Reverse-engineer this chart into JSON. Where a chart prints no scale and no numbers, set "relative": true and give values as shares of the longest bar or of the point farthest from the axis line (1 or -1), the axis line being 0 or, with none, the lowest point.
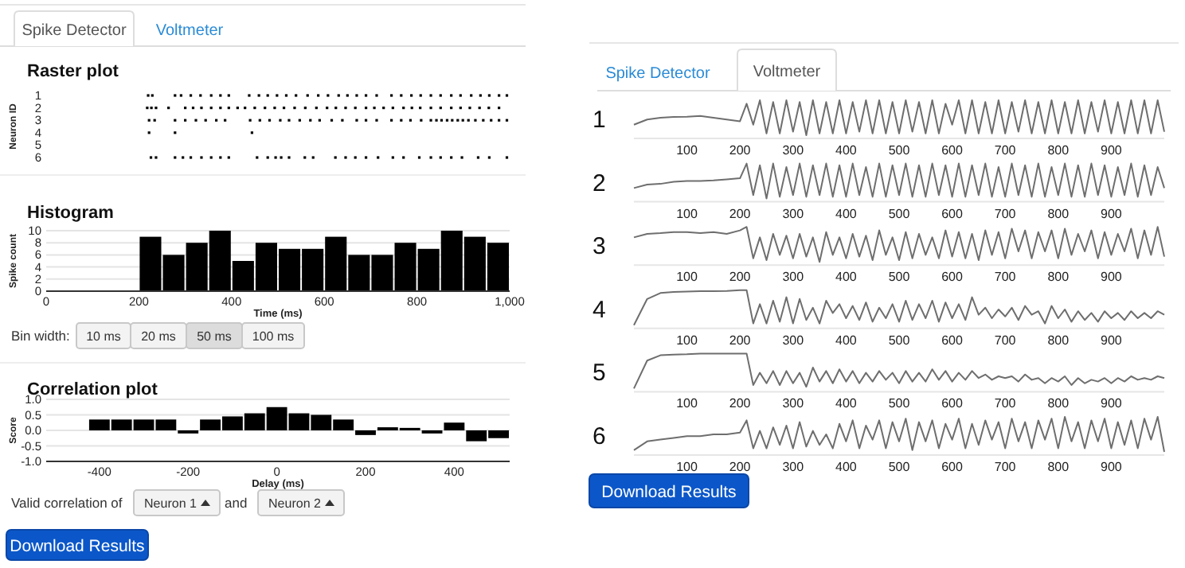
{
  "chart_data": [
    {
      "type": "scatter",
      "title": "Raster plot",
      "ylabel": "Neuron ID",
      "xlim": [
        0,
        1000
      ],
      "ylim": [
        6,
        1
      ],
      "yticks": [
        1,
        2,
        3,
        4,
        5,
        6
      ],
      "tick_labels": "y",
      "marker": "square",
      "annotations": [
        "Spike Detector",
        "Voltmeter"
      ],
      "series": [
        {
          "color": "#000000",
          "x": [
            220,
            229,
            278,
            291,
            312,
            333,
            356,
            376,
            394,
            438,
            459,
            478,
            498,
            518,
            539,
            564,
            587,
            608,
            631,
            650,
            670,
            690,
            713,
            745,
            766,
            788,
            808,
            830,
            851,
            874,
            894,
            917,
            937,
            956,
            977,
            994
          ],
          "values": [
            1,
            1,
            1,
            1,
            1,
            1,
            1,
            1,
            1,
            1,
            1,
            1,
            1,
            1,
            1,
            1,
            1,
            1,
            1,
            1,
            1,
            1,
            1,
            1,
            1,
            1,
            1,
            1,
            1,
            1,
            1,
            1,
            1,
            1,
            1,
            1
          ]
        },
        {
          "color": "#000000",
          "x": [
            218,
            227,
            237,
            264,
            300,
            317,
            335,
            356,
            376,
            394,
            413,
            429,
            450,
            472,
            493,
            513,
            536,
            559,
            583,
            606,
            625,
            646,
            667,
            690,
            708,
            728,
            748,
            771,
            789,
            807,
            830,
            851,
            874,
            894,
            914,
            935,
            955,
            977
          ],
          "values": [
            2,
            2,
            2,
            2,
            2,
            2,
            2,
            2,
            2,
            2,
            2,
            2,
            2,
            2,
            2,
            2,
            2,
            2,
            2,
            2,
            2,
            2,
            2,
            2,
            2,
            2,
            2,
            2,
            2,
            2,
            2,
            2,
            2,
            2,
            2,
            2,
            2,
            2
          ]
        },
        {
          "color": "#000000",
          "x": [
            222,
            234,
            278,
            300,
            323,
            344,
            367,
            386,
            440,
            461,
            482,
            505,
            524,
            547,
            570,
            590,
            616,
            639,
            670,
            690,
            713,
            745,
            766,
            786,
            809,
            830,
            842,
            853,
            865,
            876,
            888,
            899,
            911,
            926,
            943,
            960,
            977,
            994
          ],
          "values": [
            3,
            3,
            3,
            3,
            3,
            3,
            3,
            3,
            3,
            3,
            3,
            3,
            3,
            3,
            3,
            3,
            3,
            3,
            3,
            3,
            3,
            3,
            3,
            3,
            3,
            3,
            3,
            3,
            3,
            3,
            3,
            3,
            3,
            3,
            3,
            3,
            3,
            3
          ]
        },
        {
          "color": "#000000",
          "x": [
            222,
            278,
            444
          ],
          "values": [
            4,
            4,
            4
          ]
        },
        {
          "color": "#000000",
          "x": [
            226,
            237,
            278,
            295,
            312,
            335,
            356,
            376,
            394,
            455,
            478,
            495,
            507,
            524,
            558,
            576,
            624,
            646,
            667,
            690,
            716,
            748,
            771,
            805,
            830,
            851,
            874,
            897,
            932,
            956,
            994
          ],
          "values": [
            6,
            6,
            6,
            6,
            6,
            6,
            6,
            6,
            6,
            6,
            6,
            6,
            6,
            6,
            6,
            6,
            6,
            6,
            6,
            6,
            6,
            6,
            6,
            6,
            6,
            6,
            6,
            6,
            6,
            6,
            6
          ]
        }
      ]
    },
    {
      "type": "histogram",
      "title": "Histogram",
      "xlabel": "Time (ms)",
      "ylabel": "Spike count",
      "color": "#000000",
      "bins": [
        200,
        250,
        300,
        350,
        400,
        450,
        500,
        550,
        600,
        650,
        700,
        750,
        800,
        850,
        900,
        950,
        1000
      ],
      "values": [
        9,
        6,
        8,
        10,
        5,
        8,
        7,
        7,
        9,
        6,
        6,
        8,
        7,
        10,
        9,
        8
      ],
      "xlim": [
        0,
        1000
      ],
      "xticks": [
        0,
        200,
        400,
        600,
        800,
        {
          "value": 1000,
          "label": "1,000"
        }
      ],
      "ylim": [
        0,
        10
      ],
      "yticks": [
        0,
        2,
        4,
        6,
        8,
        10
      ],
      "grid": "y",
      "annotations": [
        "Bin width:",
        "10 ms",
        "20 ms",
        "50 ms",
        "100 ms"
      ]
    },
    {
      "type": "bar",
      "title": "Correlation plot",
      "xlabel": "Delay (ms)",
      "ylabel": "Score",
      "color": "#000000",
      "x": [
        -400,
        -350,
        -300,
        -250,
        -200,
        -150,
        -100,
        -50,
        0,
        50,
        100,
        150,
        200,
        250,
        300,
        350,
        400,
        450,
        500
      ],
      "values": [
        0.35,
        0.35,
        0.35,
        0.35,
        -0.1,
        0.35,
        0.45,
        0.55,
        0.75,
        0.55,
        0.5,
        0.35,
        -0.15,
        0.1,
        0.08,
        -0.1,
        0.25,
        -0.35,
        -0.25
      ],
      "xlim": [
        -520,
        525
      ],
      "xticks": [
        -400,
        -200,
        0,
        200,
        400
      ],
      "ylim": [
        -1,
        1
      ],
      "yticks": [
        {
          "value": -1,
          "label": "-1.0"
        },
        {
          "value": -0.5,
          "label": "-0.5"
        },
        {
          "value": 0,
          "label": "0.0"
        },
        {
          "value": 0.5,
          "label": "0.5"
        },
        {
          "value": 1,
          "label": "1.0"
        }
      ],
      "grid": "y",
      "annotations": [
        "Valid correlation of",
        "Neuron 1",
        "and",
        "Neuron 2",
        "Download Results"
      ]
    },
    {
      "type": "line",
      "title": "1",
      "relative": true,
      "color": "#6e6e6e",
      "xlim": [
        0,
        1000
      ],
      "xticks": [
        100,
        200,
        300,
        400,
        500,
        600,
        700,
        800,
        900
      ],
      "tick_labels": "x",
      "annotations": [
        "Spike Detector",
        "Voltmeter"
      ],
      "x": [
        0,
        25,
        50,
        75,
        100,
        125,
        150,
        175,
        200,
        212.5,
        225,
        237.5,
        250,
        262.5,
        275,
        287.5,
        300,
        312.5,
        325,
        337.5,
        350,
        362.5,
        375,
        387.5,
        400,
        412.5,
        425,
        437.5,
        450,
        462.5,
        475,
        487.5,
        500,
        512.5,
        525,
        537.5,
        550,
        562.5,
        575,
        587.5,
        600,
        612.5,
        625,
        637.5,
        650,
        662.5,
        675,
        687.5,
        700,
        712.5,
        725,
        737.5,
        750,
        762.5,
        775,
        787.5,
        800,
        812.5,
        825,
        837.5,
        850,
        862.5,
        875,
        887.5,
        900,
        912.5,
        925,
        937.5,
        950,
        962.5,
        975,
        987.5,
        1000
      ],
      "values": [
        0.3,
        0.45,
        0.5,
        0.52,
        0.53,
        0.55,
        0.5,
        0.45,
        0.4,
        0.9,
        0.3,
        1,
        0.05,
        0.95,
        0.05,
        1,
        0.1,
        0.95,
        0,
        1,
        0.05,
        0.95,
        0.05,
        1,
        0.05,
        0.95,
        0.1,
        1,
        0.05,
        1,
        0.05,
        0.95,
        0.05,
        1,
        0.1,
        0.95,
        0.05,
        1,
        0.05,
        0.9,
        0.3,
        1,
        0.05,
        1,
        0.05,
        0.95,
        0.05,
        1,
        0.05,
        0.95,
        0.1,
        1,
        0.05,
        0.95,
        0.05,
        1,
        0.05,
        0.95,
        0.05,
        1,
        0.05,
        0.95,
        0.1,
        1,
        0.05,
        0.95,
        0.05,
        1,
        0.05,
        1,
        0.05,
        1,
        0.1
      ]
    },
    {
      "type": "line",
      "title": "2",
      "relative": true,
      "color": "#6e6e6e",
      "xlim": [
        0,
        1000
      ],
      "xticks": [
        100,
        200,
        300,
        400,
        500,
        600,
        700,
        800,
        900
      ],
      "tick_labels": "x",
      "x": [
        0,
        25,
        50,
        75,
        100,
        125,
        150,
        175,
        200,
        212.5,
        225,
        237.5,
        250,
        262.5,
        275,
        287.5,
        300,
        312.5,
        325,
        337.5,
        350,
        362.5,
        375,
        387.5,
        400,
        412.5,
        425,
        437.5,
        450,
        462.5,
        475,
        487.5,
        500,
        512.5,
        525,
        537.5,
        550,
        562.5,
        575,
        587.5,
        600,
        612.5,
        625,
        637.5,
        650,
        662.5,
        675,
        687.5,
        700,
        712.5,
        725,
        737.5,
        750,
        762.5,
        775,
        787.5,
        800,
        812.5,
        825,
        837.5,
        850,
        862.5,
        875,
        887.5,
        900,
        912.5,
        925,
        937.5,
        950,
        962.5,
        975,
        987.5,
        1000
      ],
      "values": [
        0.3,
        0.4,
        0.42,
        0.48,
        0.5,
        0.5,
        0.52,
        0.55,
        0.58,
        1,
        0.1,
        0.95,
        0,
        1,
        0.05,
        0.9,
        0.1,
        1,
        0.05,
        0.95,
        0.1,
        1,
        0.05,
        0.95,
        0.05,
        1,
        0.1,
        0.9,
        0.05,
        1,
        0.05,
        0.95,
        0.1,
        1,
        0.05,
        0.95,
        0.05,
        1,
        0.1,
        0.95,
        0.05,
        1,
        0.05,
        0.95,
        0.1,
        1,
        0.05,
        0.9,
        0.05,
        1,
        0.1,
        0.95,
        0.05,
        1,
        0.05,
        0.9,
        0.1,
        1,
        0.05,
        0.95,
        0.05,
        1,
        0.1,
        0.95,
        0.05,
        0.9,
        0.1,
        1,
        0.05,
        0.95,
        0.1,
        0.9,
        0.3
      ]
    },
    {
      "type": "line",
      "title": "3",
      "relative": true,
      "color": "#6e6e6e",
      "xlim": [
        0,
        1000
      ],
      "xticks": [
        100,
        200,
        300,
        400,
        500,
        600,
        700,
        800,
        900
      ],
      "tick_labels": "x",
      "x": [
        0,
        25,
        50,
        75,
        100,
        125,
        150,
        175,
        200,
        212.5,
        225,
        237.5,
        250,
        262.5,
        275,
        287.5,
        300,
        312.5,
        325,
        337.5,
        350,
        362.5,
        375,
        387.5,
        400,
        412.5,
        425,
        437.5,
        450,
        462.5,
        475,
        487.5,
        500,
        512.5,
        525,
        537.5,
        550,
        562.5,
        575,
        587.5,
        600,
        612.5,
        625,
        637.5,
        650,
        662.5,
        675,
        687.5,
        700,
        712.5,
        725,
        737.5,
        750,
        762.5,
        775,
        787.5,
        800,
        812.5,
        825,
        837.5,
        850,
        862.5,
        875,
        887.5,
        900,
        912.5,
        925,
        937.5,
        950,
        962.5,
        975,
        987.5,
        1000
      ],
      "values": [
        0.7,
        0.8,
        0.82,
        0.85,
        0.85,
        0.82,
        0.85,
        0.8,
        0.9,
        1,
        0.1,
        0.7,
        0.05,
        0.8,
        0.2,
        0.75,
        0.1,
        0.8,
        0.15,
        0.7,
        0,
        0.85,
        0.2,
        0.7,
        0.1,
        0.8,
        0.15,
        0.75,
        0.05,
        0.9,
        0.2,
        0.7,
        0.05,
        0.85,
        0.1,
        0.8,
        0.2,
        0.7,
        0.1,
        0.9,
        0.15,
        0.85,
        0.1,
        0.8,
        0.05,
        0.9,
        0.2,
        0.85,
        0.1,
        0.95,
        0.3,
        0.9,
        0.1,
        0.85,
        0.3,
        0.9,
        0.1,
        0.95,
        0.2,
        0.8,
        0.3,
        0.9,
        0.1,
        0.85,
        0.2,
        0.8,
        0.3,
        0.95,
        0.1,
        0.9,
        0.2,
        1,
        0.15
      ]
    },
    {
      "type": "line",
      "title": "4",
      "relative": true,
      "color": "#6e6e6e",
      "xlim": [
        0,
        1000
      ],
      "xticks": [
        100,
        200,
        300,
        400,
        500,
        600,
        700,
        800,
        900
      ],
      "tick_labels": "x",
      "x": [
        0,
        25,
        50,
        75,
        100,
        125,
        150,
        175,
        200,
        212.5,
        225,
        237.5,
        250,
        262.5,
        275,
        287.5,
        300,
        312.5,
        325,
        337.5,
        350,
        362.5,
        375,
        387.5,
        400,
        412.5,
        425,
        437.5,
        450,
        462.5,
        475,
        487.5,
        500,
        512.5,
        525,
        537.5,
        550,
        562.5,
        575,
        587.5,
        600,
        612.5,
        625,
        637.5,
        650,
        662.5,
        675,
        687.5,
        700,
        712.5,
        725,
        737.5,
        750,
        762.5,
        775,
        787.5,
        800,
        812.5,
        825,
        837.5,
        850,
        862.5,
        875,
        887.5,
        900,
        912.5,
        925,
        937.5,
        950,
        962.5,
        975,
        987.5,
        1000
      ],
      "values": [
        0,
        0.75,
        0.92,
        0.95,
        0.96,
        0.97,
        0.97,
        0.98,
        1,
        1,
        0.05,
        0.6,
        0.05,
        0.7,
        0.1,
        0.8,
        0.05,
        0.75,
        0.15,
        0.5,
        0.05,
        0.7,
        0.35,
        0.6,
        0.2,
        0.55,
        0.15,
        0.65,
        0.1,
        0.5,
        0.2,
        0.6,
        0.1,
        0.7,
        0.15,
        0.6,
        0.2,
        0.7,
        0.1,
        0.65,
        0.2,
        0.6,
        0.15,
        0.8,
        0.3,
        0.5,
        0.2,
        0.45,
        0.25,
        0.5,
        0.15,
        0.55,
        0.3,
        0.4,
        0.05,
        0.55,
        0.2,
        0.45,
        0.1,
        0.4,
        0.15,
        0.35,
        0.1,
        0.4,
        0.2,
        0.35,
        0.15,
        0.4,
        0.2,
        0.35,
        0.2,
        0.4,
        0.3
      ]
    },
    {
      "type": "line",
      "title": "5",
      "relative": true,
      "color": "#6e6e6e",
      "xlim": [
        0,
        1000
      ],
      "xticks": [
        100,
        200,
        300,
        400,
        500,
        600,
        700,
        800,
        900
      ],
      "tick_labels": "x",
      "x": [
        0,
        25,
        50,
        75,
        100,
        125,
        150,
        175,
        200,
        212.5,
        225,
        237.5,
        250,
        262.5,
        275,
        287.5,
        300,
        312.5,
        325,
        337.5,
        350,
        362.5,
        375,
        387.5,
        400,
        412.5,
        425,
        437.5,
        450,
        462.5,
        475,
        487.5,
        500,
        512.5,
        525,
        537.5,
        550,
        562.5,
        575,
        587.5,
        600,
        612.5,
        625,
        637.5,
        650,
        662.5,
        675,
        687.5,
        700,
        712.5,
        725,
        737.5,
        750,
        762.5,
        775,
        787.5,
        800,
        812.5,
        825,
        837.5,
        850,
        862.5,
        875,
        887.5,
        900,
        912.5,
        925,
        937.5,
        950,
        962.5,
        975,
        987.5,
        1000
      ],
      "values": [
        0,
        0.8,
        0.95,
        0.97,
        0.98,
        1,
        1,
        1,
        1,
        1,
        0.1,
        0.45,
        0.15,
        0.5,
        0.1,
        0.5,
        0.15,
        0.45,
        0.05,
        0.6,
        0.2,
        0.5,
        0.15,
        0.55,
        0.2,
        0.5,
        0.15,
        0.45,
        0.2,
        0.5,
        0.25,
        0.45,
        0.15,
        0.5,
        0.2,
        0.45,
        0.2,
        0.55,
        0.25,
        0.5,
        0.2,
        0.45,
        0.25,
        0.5,
        0.3,
        0.4,
        0.25,
        0.35,
        0.3,
        0.35,
        0.2,
        0.4,
        0.25,
        0.3,
        0.15,
        0.3,
        0.2,
        0.35,
        0.1,
        0.3,
        0.15,
        0.25,
        0.2,
        0.3,
        0.15,
        0.3,
        0.2,
        0.35,
        0.25,
        0.3,
        0.25,
        0.35,
        0.3
      ]
    },
    {
      "type": "line",
      "title": "6",
      "relative": true,
      "color": "#6e6e6e",
      "xlim": [
        0,
        1000
      ],
      "xticks": [
        100,
        200,
        300,
        400,
        500,
        600,
        700,
        800,
        900
      ],
      "tick_labels": "x",
      "annotations": [
        "Download Results"
      ],
      "x": [
        0,
        25,
        50,
        75,
        100,
        125,
        150,
        175,
        200,
        212.5,
        225,
        237.5,
        250,
        262.5,
        275,
        287.5,
        300,
        312.5,
        325,
        337.5,
        350,
        362.5,
        375,
        387.5,
        400,
        412.5,
        425,
        437.5,
        450,
        462.5,
        475,
        487.5,
        500,
        512.5,
        525,
        537.5,
        550,
        562.5,
        575,
        587.5,
        600,
        612.5,
        625,
        637.5,
        650,
        662.5,
        675,
        687.5,
        700,
        712.5,
        725,
        737.5,
        750,
        762.5,
        775,
        787.5,
        800,
        812.5,
        825,
        837.5,
        850,
        862.5,
        875,
        887.5,
        900,
        912.5,
        925,
        937.5,
        950,
        962.5,
        975,
        987.5,
        1000
      ],
      "values": [
        0.05,
        0.3,
        0.35,
        0.4,
        0.45,
        0.45,
        0.5,
        0.5,
        0.55,
        0.9,
        0.1,
        0.6,
        0.1,
        0.7,
        0.2,
        0.75,
        0.1,
        0.85,
        0.15,
        0.6,
        0.2,
        0.5,
        0.1,
        0.8,
        0.3,
        0.9,
        0.1,
        0.75,
        0.35,
        0.9,
        0.1,
        0.85,
        0.3,
        0.95,
        0.05,
        0.85,
        0.3,
        0.9,
        0.1,
        0.8,
        0.35,
        0.95,
        0.1,
        0.8,
        0.2,
        0.9,
        0.35,
        0.85,
        0.1,
        0.95,
        0.3,
        0.85,
        0.1,
        0.9,
        0.35,
        0.95,
        0.1,
        1,
        0.3,
        0.85,
        0.1,
        0.9,
        0.3,
        0.95,
        0.1,
        0.85,
        0.2,
        0.9,
        0.1,
        0.95,
        0.35,
        1,
        0
      ]
    }
  ]
}
